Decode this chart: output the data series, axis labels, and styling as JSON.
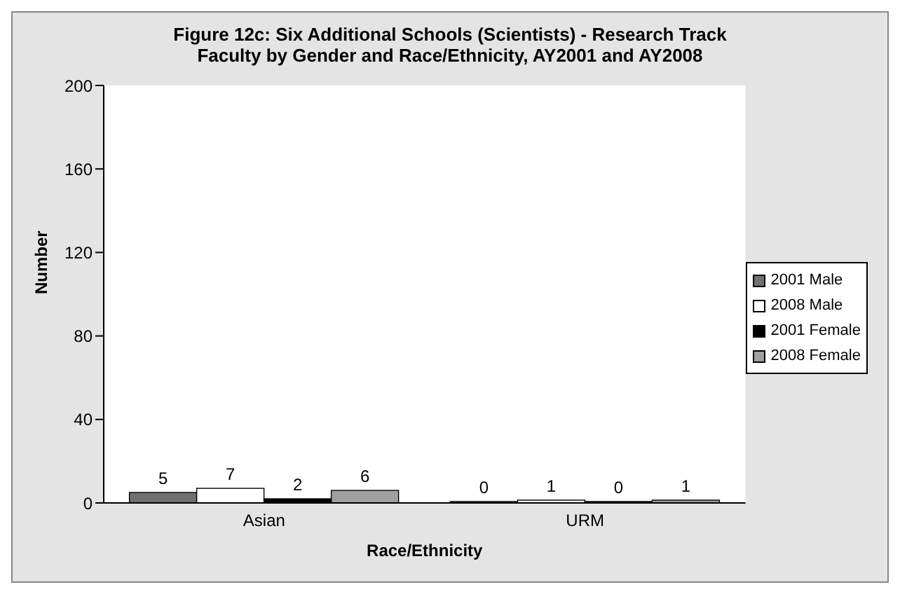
{
  "chart_data": {
    "type": "bar",
    "title": "Figure 12c: Six Additional Schools (Scientists) - Research Track Faculty by Gender and Race/Ethnicity, AY2001 and AY2008",
    "xlabel": "Race/Ethnicity",
    "ylabel": "Number",
    "categories": [
      "Asian",
      "URM"
    ],
    "series": [
      {
        "name": "2001 Male",
        "color": "#707070",
        "values": [
          5,
          0
        ]
      },
      {
        "name": "2008 Male",
        "color": "#ffffff",
        "values": [
          7,
          1
        ]
      },
      {
        "name": "2001 Female",
        "color": "#000000",
        "values": [
          2,
          0
        ]
      },
      {
        "name": "2008 Female",
        "color": "#a0a0a0",
        "values": [
          6,
          1
        ]
      }
    ],
    "ylim": [
      0,
      200
    ],
    "yticks": [
      0,
      40,
      80,
      120,
      160,
      200
    ],
    "data_labels": true,
    "legend": "right",
    "grid": false
  }
}
